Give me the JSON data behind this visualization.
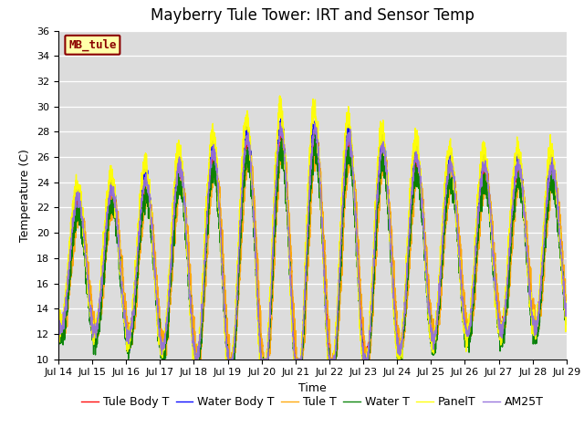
{
  "title": "Mayberry Tule Tower: IRT and Sensor Temp",
  "xlabel": "Time",
  "ylabel": "Temperature (C)",
  "ylim": [
    10,
    36
  ],
  "xtick_labels": [
    "Jul 14",
    "Jul 15",
    "Jul 16",
    "Jul 17",
    "Jul 18",
    "Jul 19",
    "Jul 20",
    "Jul 21",
    "Jul 22",
    "Jul 23",
    "Jul 24",
    "Jul 25",
    "Jul 26",
    "Jul 27",
    "Jul 28",
    "Jul 29"
  ],
  "ytick_values": [
    10,
    12,
    14,
    16,
    18,
    20,
    22,
    24,
    26,
    28,
    30,
    32,
    34,
    36
  ],
  "series_colors": [
    "red",
    "blue",
    "orange",
    "green",
    "yellow",
    "mediumpurple"
  ],
  "series_names": [
    "Tule Body T",
    "Water Body T",
    "Tule T",
    "Water T",
    "PanelT",
    "AM25T"
  ],
  "plot_bgcolor": "#dcdcdc",
  "fig_bgcolor": "#ffffff",
  "label_box_text": "MB_tule",
  "label_box_facecolor": "#ffffaa",
  "label_box_edgecolor": "#8b0000",
  "title_fontsize": 12,
  "tick_fontsize": 8,
  "legend_fontsize": 9,
  "linewidth": 1.0
}
